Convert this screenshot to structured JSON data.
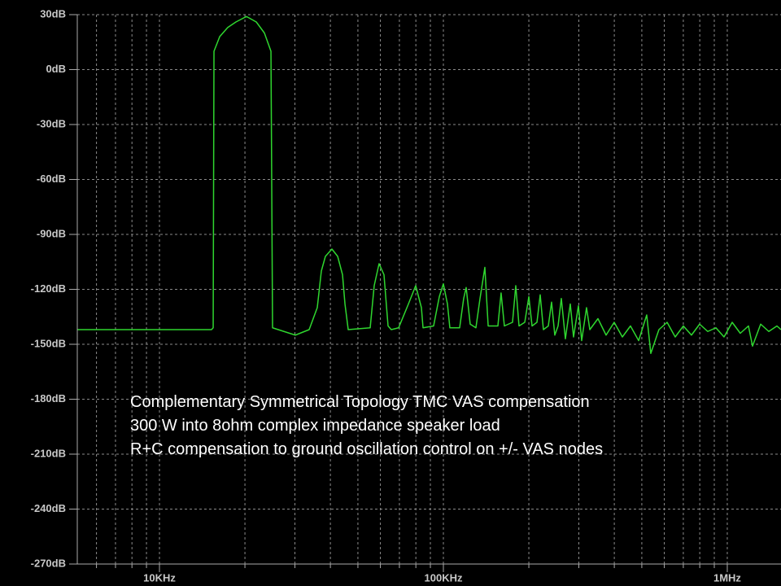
{
  "chart_data": {
    "type": "line",
    "log_x": true,
    "grid": true,
    "xlim": [
      5135,
      1546000
    ],
    "ylim": [
      -270,
      30
    ],
    "xticks": [
      {
        "value": 10000,
        "label": "10KHz"
      },
      {
        "value": 100000,
        "label": "100KHz"
      },
      {
        "value": 1000000,
        "label": "1MHz"
      }
    ],
    "xminorticks": [
      6000,
      7000,
      8000,
      9000,
      20000,
      30000,
      40000,
      50000,
      60000,
      70000,
      80000,
      90000,
      200000,
      300000,
      400000,
      500000,
      600000,
      700000,
      800000,
      900000
    ],
    "yticks": [
      {
        "value": 30,
        "label": "30dB"
      },
      {
        "value": 0,
        "label": "0dB"
      },
      {
        "value": -30,
        "label": "-30dB"
      },
      {
        "value": -60,
        "label": "-60dB"
      },
      {
        "value": -90,
        "label": "-90dB"
      },
      {
        "value": -120,
        "label": "-120dB"
      },
      {
        "value": -150,
        "label": "-150dB"
      },
      {
        "value": -180,
        "label": "-180dB"
      },
      {
        "value": -210,
        "label": "-210dB"
      },
      {
        "value": -240,
        "label": "-240dB"
      },
      {
        "value": -270,
        "label": "-270dB"
      }
    ],
    "annotations": [
      "Complementary Symmetrical Topology   TMC  VAS compensation",
      "300 W into 8ohm complex impedance speaker load",
      "R+C  compensation to ground oscillation control on +/- VAS nodes"
    ],
    "x": [
      5135,
      15250,
      15460,
      15560,
      16300,
      17400,
      18590,
      20250,
      21930,
      23420,
      24700,
      25020,
      30100,
      33670,
      35960,
      37170,
      38410,
      40500,
      42430,
      44130,
      45020,
      46220,
      55230,
      57060,
      59360,
      61770,
      63850,
      65550,
      69560,
      75310,
      79900,
      83680,
      84800,
      92380,
      96760,
      100000,
      103350,
      105410,
      114100,
      117900,
      120300,
      124300,
      130200,
      134600,
      140000,
      143800,
      155600,
      159700,
      164000,
      175200,
      179900,
      184700,
      193500,
      200000,
      205300,
      213600,
      219300,
      225100,
      234200,
      240500,
      246900,
      253500,
      260300,
      269000,
      279900,
      287400,
      299000,
      307000,
      319300,
      328000,
      350300,
      374200,
      399600,
      427000,
      456000,
      487300,
      520300,
      537800,
      574400,
      613800,
      655500,
      700300,
      747900,
      799100,
      853400,
      911900,
      973900,
      1040400,
      1111200,
      1187400,
      1227100,
      1311000,
      1400200,
      1496000,
      1546000
    ],
    "series": [
      {
        "color": "#2fd62f",
        "values": [
          -142,
          -142,
          -141,
          10,
          18,
          23,
          26,
          29,
          26,
          20,
          10,
          -141,
          -145,
          -142,
          -130,
          -110,
          -102,
          -98,
          -102,
          -112,
          -128,
          -142,
          -141,
          -118,
          -106,
          -112,
          -140,
          -142,
          -141,
          -128,
          -118,
          -130,
          -141,
          -140,
          -124,
          -117,
          -128,
          -141,
          -141,
          -125,
          -119,
          -139,
          -141,
          -125,
          -108,
          -140,
          -140,
          -122,
          -140,
          -138,
          -118,
          -140,
          -138,
          -124,
          -140,
          -138,
          -123,
          -142,
          -140,
          -127,
          -145,
          -140,
          -125,
          -147,
          -128,
          -146,
          -129,
          -148,
          -130,
          -142,
          -136,
          -145,
          -138,
          -146,
          -140,
          -148,
          -134,
          -155,
          -142,
          -138,
          -146,
          -140,
          -145,
          -139,
          -143,
          -141,
          -146,
          -138,
          -144,
          -140,
          -151,
          -139,
          -143,
          -140,
          -142
        ]
      }
    ]
  }
}
